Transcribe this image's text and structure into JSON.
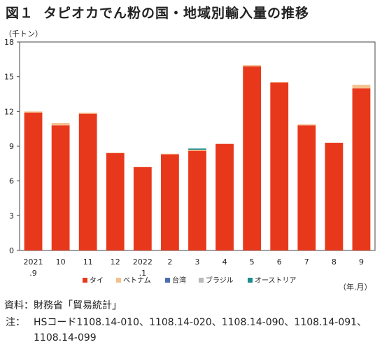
{
  "header": {
    "figure_label": "図１",
    "title": "タピオカでん粉の国・地域別輸入量の推移"
  },
  "footer": {
    "source": "資料：財務省「貿易統計」",
    "note_label": "注：",
    "note_text": "HSコード1108.14-010、1108.14-020、1108.14-090、1108.14-091、1108.14-099"
  },
  "chart_data": {
    "type": "bar",
    "stacked": true,
    "ylabel": "（千トン）",
    "xlabel": "（年.月）",
    "ylim": [
      0,
      18
    ],
    "yticks": [
      0,
      3,
      6,
      9,
      12,
      15,
      18
    ],
    "grid": false,
    "legend_position": "bottom",
    "categories": [
      [
        "2021",
        ".9"
      ],
      [
        "10"
      ],
      [
        "11"
      ],
      [
        "12"
      ],
      [
        "2022",
        ".1"
      ],
      [
        "2"
      ],
      [
        "3"
      ],
      [
        "4"
      ],
      [
        "5"
      ],
      [
        "6"
      ],
      [
        "7"
      ],
      [
        "8"
      ],
      [
        "9"
      ]
    ],
    "series": [
      {
        "name": "タイ",
        "color": "#e8381c",
        "values": [
          11.9,
          10.8,
          11.8,
          8.4,
          7.2,
          8.3,
          8.6,
          9.2,
          15.9,
          14.5,
          10.8,
          9.3,
          14.0
        ]
      },
      {
        "name": "ベトナム",
        "color": "#f4c08e",
        "values": [
          0.1,
          0.2,
          0.1,
          0.05,
          0.0,
          0.05,
          0.1,
          0.0,
          0.1,
          0.05,
          0.1,
          0.0,
          0.3
        ]
      },
      {
        "name": "台湾",
        "color": "#4a6fb0",
        "values": [
          0,
          0,
          0,
          0,
          0,
          0,
          0,
          0,
          0,
          0,
          0,
          0,
          0
        ]
      },
      {
        "name": "ブラジル",
        "color": "#b9b9b9",
        "values": [
          0,
          0,
          0,
          0,
          0,
          0,
          0,
          0,
          0,
          0,
          0,
          0,
          0
        ]
      },
      {
        "name": "オーストリア",
        "color": "#1e8c8c",
        "values": [
          0,
          0,
          0,
          0,
          0,
          0,
          0.1,
          0,
          0,
          0,
          0,
          0,
          0
        ]
      }
    ]
  }
}
